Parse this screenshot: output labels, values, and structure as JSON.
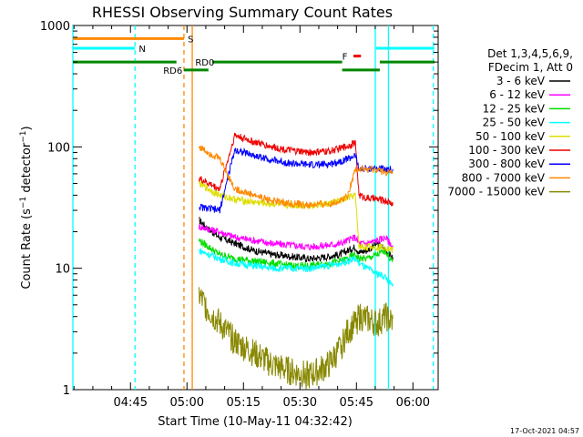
{
  "chart_data": {
    "type": "line",
    "title": "RHESSI Observing Summary Count Rates",
    "xlabel": "Start Time (10-May-11 04:32:42)",
    "ylabel_main": "Count Rate (s",
    "ylabel_sup1": "−1",
    "ylabel_mid": " detector",
    "ylabel_sup2": "−1",
    "ylabel_end": ")",
    "y_scale": "log",
    "ylim": [
      1,
      1000
    ],
    "xlim_minutes": [
      -3,
      94
    ],
    "x_ticks": [
      {
        "label": "04:45",
        "min": 12.3
      },
      {
        "label": "05:00",
        "min": 27.3
      },
      {
        "label": "05:15",
        "min": 42.3
      },
      {
        "label": "05:30",
        "min": 57.3
      },
      {
        "label": "05:45",
        "min": 72.3
      },
      {
        "label": "06:00",
        "min": 87.3
      }
    ],
    "y_ticks": [
      {
        "label": "1",
        "value": 1
      },
      {
        "label": "10",
        "value": 10
      },
      {
        "label": "100",
        "value": 100
      },
      {
        "label": "1000",
        "value": 1000
      }
    ],
    "legend_header": [
      "Det 1,3,4,5,6,9,",
      "FDecim 1, Att 0"
    ],
    "legend_position": "right",
    "timestamp": "17-Oct-2021 04:57",
    "series": [
      {
        "name": "3 - 6 keV",
        "color": "#000000",
        "x": [
          30.5,
          33,
          36,
          40,
          45,
          50,
          55,
          60,
          65,
          68,
          70,
          72,
          73,
          75,
          78,
          80,
          82
        ],
        "y": [
          25,
          21,
          18,
          16,
          14,
          13,
          12.5,
          12,
          12.5,
          13,
          14,
          15,
          13.5,
          14,
          16,
          14,
          12
        ]
      },
      {
        "name": "6 - 12 keV",
        "color": "#ff00ff",
        "x": [
          30.5,
          33,
          36,
          40,
          45,
          50,
          55,
          60,
          65,
          68,
          70,
          72,
          73,
          75,
          78,
          80,
          82
        ],
        "y": [
          22,
          21,
          20,
          18,
          17,
          16,
          15.5,
          15,
          15.5,
          16,
          17,
          18,
          16,
          16,
          17,
          18,
          15
        ]
      },
      {
        "name": "12 - 25 keV",
        "color": "#00dd00",
        "x": [
          30.5,
          33,
          36,
          40,
          45,
          50,
          55,
          60,
          65,
          68,
          70,
          72,
          73,
          75,
          78,
          80,
          82
        ],
        "y": [
          17,
          15,
          13,
          12,
          11.5,
          11,
          10.5,
          10.5,
          11,
          11.5,
          12,
          13,
          12,
          12,
          13,
          14,
          11
        ]
      },
      {
        "name": "25 - 50 keV",
        "color": "#00ffff",
        "x": [
          30.5,
          33,
          36,
          40,
          45,
          50,
          55,
          60,
          65,
          68,
          70,
          72,
          73,
          75,
          78,
          80,
          82
        ],
        "y": [
          14,
          13,
          12,
          11,
          10.5,
          10,
          10,
          10,
          10.5,
          11,
          11.5,
          12,
          11,
          10,
          9,
          8.5,
          7
        ]
      },
      {
        "name": "50 - 100 keV",
        "color": "#dddd00",
        "x": [
          30.5,
          33,
          36,
          40,
          45,
          50,
          55,
          60,
          65,
          68,
          70,
          72,
          73,
          75,
          78,
          80,
          82
        ],
        "y": [
          50,
          45,
          40,
          37,
          35,
          34,
          33,
          33,
          34,
          36,
          38,
          40,
          15,
          15,
          15,
          15,
          14
        ]
      },
      {
        "name": "100 - 300 keV",
        "color": "#ee0000",
        "x": [
          30.5,
          33,
          36,
          40,
          45,
          50,
          55,
          60,
          65,
          68,
          70,
          72,
          73,
          75,
          78,
          80,
          82
        ],
        "y": [
          55,
          50,
          45,
          125,
          110,
          100,
          93,
          90,
          92,
          97,
          102,
          108,
          40,
          38,
          37,
          36,
          34
        ]
      },
      {
        "name": "300 - 800 keV",
        "color": "#0000ff",
        "x": [
          30.5,
          33,
          36,
          40,
          45,
          50,
          55,
          60,
          65,
          68,
          70,
          72,
          73,
          75,
          78,
          80,
          82
        ],
        "y": [
          32,
          31,
          30,
          95,
          85,
          78,
          73,
          71,
          72,
          76,
          80,
          85,
          66,
          66,
          66,
          66,
          64
        ]
      },
      {
        "name": "800 - 7000 keV",
        "color": "#ff8800",
        "x": [
          30.5,
          33,
          36,
          40,
          45,
          50,
          55,
          60,
          65,
          68,
          70,
          72,
          73,
          75,
          78,
          80,
          82
        ],
        "y": [
          100,
          90,
          80,
          45,
          40,
          36,
          34,
          33,
          34,
          36,
          40,
          66,
          65,
          65,
          64,
          62,
          60
        ]
      },
      {
        "name": "7000 - 15000 keV",
        "color": "#888800",
        "x": [
          30.5,
          33,
          36,
          40,
          45,
          50,
          55,
          60,
          65,
          68,
          70,
          72,
          73,
          75,
          78,
          80,
          82
        ],
        "y": [
          6,
          4.5,
          3.5,
          2.5,
          2,
          1.6,
          1.4,
          1.3,
          1.6,
          2.2,
          3,
          3.5,
          4,
          3.8,
          3.5,
          4,
          3.5
        ]
      }
    ],
    "state_bars": [
      {
        "label": "S",
        "color": "#ff8800",
        "segments": [
          [
            -3,
            26.5
          ]
        ],
        "value": 780,
        "label_at": 27.5
      },
      {
        "label": "N",
        "color": "#00ffff",
        "segments": [
          [
            -3,
            13.5
          ],
          [
            77.5,
            93
          ]
        ],
        "value": 650,
        "label_at": 14.5
      },
      {
        "label": "F",
        "color": "#ee0000",
        "segments": [
          [
            71.5,
            73.5
          ]
        ],
        "value": 560,
        "label_at": 68.5
      },
      {
        "label": "RD0",
        "color": "#008800",
        "segments": [
          [
            -3,
            24.5
          ],
          [
            34,
            68.5
          ],
          [
            78.5,
            93
          ]
        ],
        "value": 500,
        "label_at": 29.5
      },
      {
        "label": "RD6",
        "color": "#008800",
        "segments": [
          [
            26.5,
            33
          ],
          [
            68.5,
            78.5
          ]
        ],
        "value": 430,
        "label_at": 21
      }
    ],
    "vlines": [
      {
        "min": -3,
        "color": "#00ffff",
        "dashed": false
      },
      {
        "min": 13.5,
        "color": "#00ffff",
        "dashed": true
      },
      {
        "min": 26.5,
        "color": "#ff8800",
        "dashed": true
      },
      {
        "min": 28.7,
        "color": "#ff8800",
        "dashed": false
      },
      {
        "min": 77.3,
        "color": "#00ffff",
        "dashed": false
      },
      {
        "min": 80.8,
        "color": "#00ffff",
        "dashed": false
      },
      {
        "min": 92.7,
        "color": "#00ffff",
        "dashed": true
      }
    ]
  }
}
